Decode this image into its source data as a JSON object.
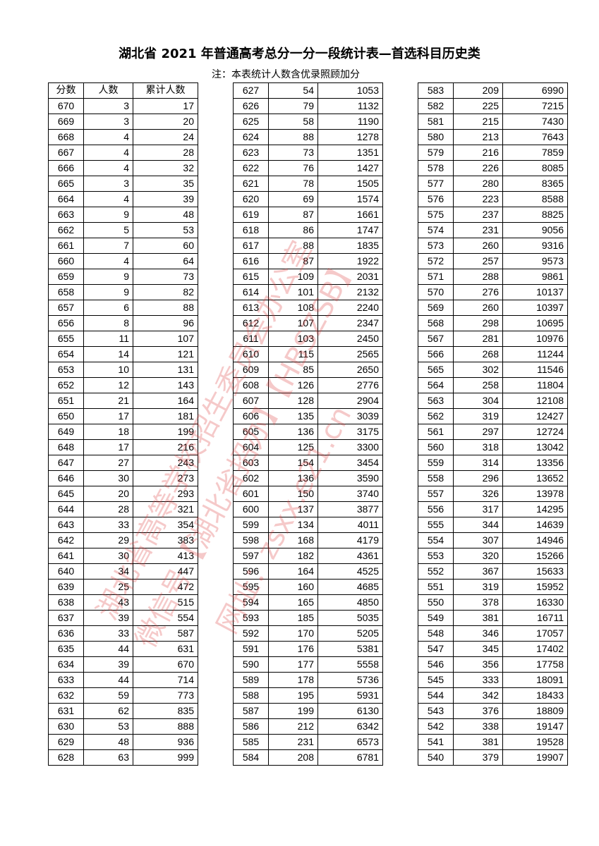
{
  "title": "湖北省 2021 年普通高考总分一分一段统计表—首选科目历史类",
  "note": "注：本表统计人数含优录照顾加分",
  "headers": [
    "分数",
    "人数",
    "累计人数"
  ],
  "watermark": [
    "湖北省高等学校招生委员会办公室",
    "微信号【湖北省招办】【HBSZSB】",
    "网址：zsxx.e21.cn"
  ],
  "watermark_color": "#dc3c3c",
  "columns": [
    [
      [
        670,
        3,
        17
      ],
      [
        669,
        3,
        20
      ],
      [
        668,
        4,
        24
      ],
      [
        667,
        4,
        28
      ],
      [
        666,
        4,
        32
      ],
      [
        665,
        3,
        35
      ],
      [
        664,
        4,
        39
      ],
      [
        663,
        9,
        48
      ],
      [
        662,
        5,
        53
      ],
      [
        661,
        7,
        60
      ],
      [
        660,
        4,
        64
      ],
      [
        659,
        9,
        73
      ],
      [
        658,
        9,
        82
      ],
      [
        657,
        6,
        88
      ],
      [
        656,
        8,
        96
      ],
      [
        655,
        11,
        107
      ],
      [
        654,
        14,
        121
      ],
      [
        653,
        10,
        131
      ],
      [
        652,
        12,
        143
      ],
      [
        651,
        21,
        164
      ],
      [
        650,
        17,
        181
      ],
      [
        649,
        18,
        199
      ],
      [
        648,
        17,
        216
      ],
      [
        647,
        27,
        243
      ],
      [
        646,
        30,
        273
      ],
      [
        645,
        20,
        293
      ],
      [
        644,
        28,
        321
      ],
      [
        643,
        33,
        354
      ],
      [
        642,
        29,
        383
      ],
      [
        641,
        30,
        413
      ],
      [
        640,
        34,
        447
      ],
      [
        639,
        25,
        472
      ],
      [
        638,
        43,
        515
      ],
      [
        637,
        39,
        554
      ],
      [
        636,
        33,
        587
      ],
      [
        635,
        44,
        631
      ],
      [
        634,
        39,
        670
      ],
      [
        633,
        44,
        714
      ],
      [
        632,
        59,
        773
      ],
      [
        631,
        62,
        835
      ],
      [
        630,
        53,
        888
      ],
      [
        629,
        48,
        936
      ],
      [
        628,
        63,
        999
      ]
    ],
    [
      [
        627,
        54,
        1053
      ],
      [
        626,
        79,
        1132
      ],
      [
        625,
        58,
        1190
      ],
      [
        624,
        88,
        1278
      ],
      [
        623,
        73,
        1351
      ],
      [
        622,
        76,
        1427
      ],
      [
        621,
        78,
        1505
      ],
      [
        620,
        69,
        1574
      ],
      [
        619,
        87,
        1661
      ],
      [
        618,
        86,
        1747
      ],
      [
        617,
        88,
        1835
      ],
      [
        616,
        87,
        1922
      ],
      [
        615,
        109,
        2031
      ],
      [
        614,
        101,
        2132
      ],
      [
        613,
        108,
        2240
      ],
      [
        612,
        107,
        2347
      ],
      [
        611,
        103,
        2450
      ],
      [
        610,
        115,
        2565
      ],
      [
        609,
        85,
        2650
      ],
      [
        608,
        126,
        2776
      ],
      [
        607,
        128,
        2904
      ],
      [
        606,
        135,
        3039
      ],
      [
        605,
        136,
        3175
      ],
      [
        604,
        125,
        3300
      ],
      [
        603,
        154,
        3454
      ],
      [
        602,
        136,
        3590
      ],
      [
        601,
        150,
        3740
      ],
      [
        600,
        137,
        3877
      ],
      [
        599,
        134,
        4011
      ],
      [
        598,
        168,
        4179
      ],
      [
        597,
        182,
        4361
      ],
      [
        596,
        164,
        4525
      ],
      [
        595,
        160,
        4685
      ],
      [
        594,
        165,
        4850
      ],
      [
        593,
        185,
        5035
      ],
      [
        592,
        170,
        5205
      ],
      [
        591,
        176,
        5381
      ],
      [
        590,
        177,
        5558
      ],
      [
        589,
        178,
        5736
      ],
      [
        588,
        195,
        5931
      ],
      [
        587,
        199,
        6130
      ],
      [
        586,
        212,
        6342
      ],
      [
        585,
        231,
        6573
      ],
      [
        584,
        208,
        6781
      ]
    ],
    [
      [
        583,
        209,
        6990
      ],
      [
        582,
        225,
        7215
      ],
      [
        581,
        215,
        7430
      ],
      [
        580,
        213,
        7643
      ],
      [
        579,
        216,
        7859
      ],
      [
        578,
        226,
        8085
      ],
      [
        577,
        280,
        8365
      ],
      [
        576,
        223,
        8588
      ],
      [
        575,
        237,
        8825
      ],
      [
        574,
        231,
        9056
      ],
      [
        573,
        260,
        9316
      ],
      [
        572,
        257,
        9573
      ],
      [
        571,
        288,
        9861
      ],
      [
        570,
        276,
        10137
      ],
      [
        569,
        260,
        10397
      ],
      [
        568,
        298,
        10695
      ],
      [
        567,
        281,
        10976
      ],
      [
        566,
        268,
        11244
      ],
      [
        565,
        302,
        11546
      ],
      [
        564,
        258,
        11804
      ],
      [
        563,
        304,
        12108
      ],
      [
        562,
        319,
        12427
      ],
      [
        561,
        297,
        12724
      ],
      [
        560,
        318,
        13042
      ],
      [
        559,
        314,
        13356
      ],
      [
        558,
        296,
        13652
      ],
      [
        557,
        326,
        13978
      ],
      [
        556,
        317,
        14295
      ],
      [
        555,
        344,
        14639
      ],
      [
        554,
        307,
        14946
      ],
      [
        553,
        320,
        15266
      ],
      [
        552,
        367,
        15633
      ],
      [
        551,
        319,
        15952
      ],
      [
        550,
        378,
        16330
      ],
      [
        549,
        381,
        16711
      ],
      [
        548,
        346,
        17057
      ],
      [
        547,
        345,
        17402
      ],
      [
        546,
        356,
        17758
      ],
      [
        545,
        333,
        18091
      ],
      [
        544,
        342,
        18433
      ],
      [
        543,
        376,
        18809
      ],
      [
        542,
        338,
        19147
      ],
      [
        541,
        381,
        19528
      ],
      [
        540,
        379,
        19907
      ]
    ]
  ]
}
